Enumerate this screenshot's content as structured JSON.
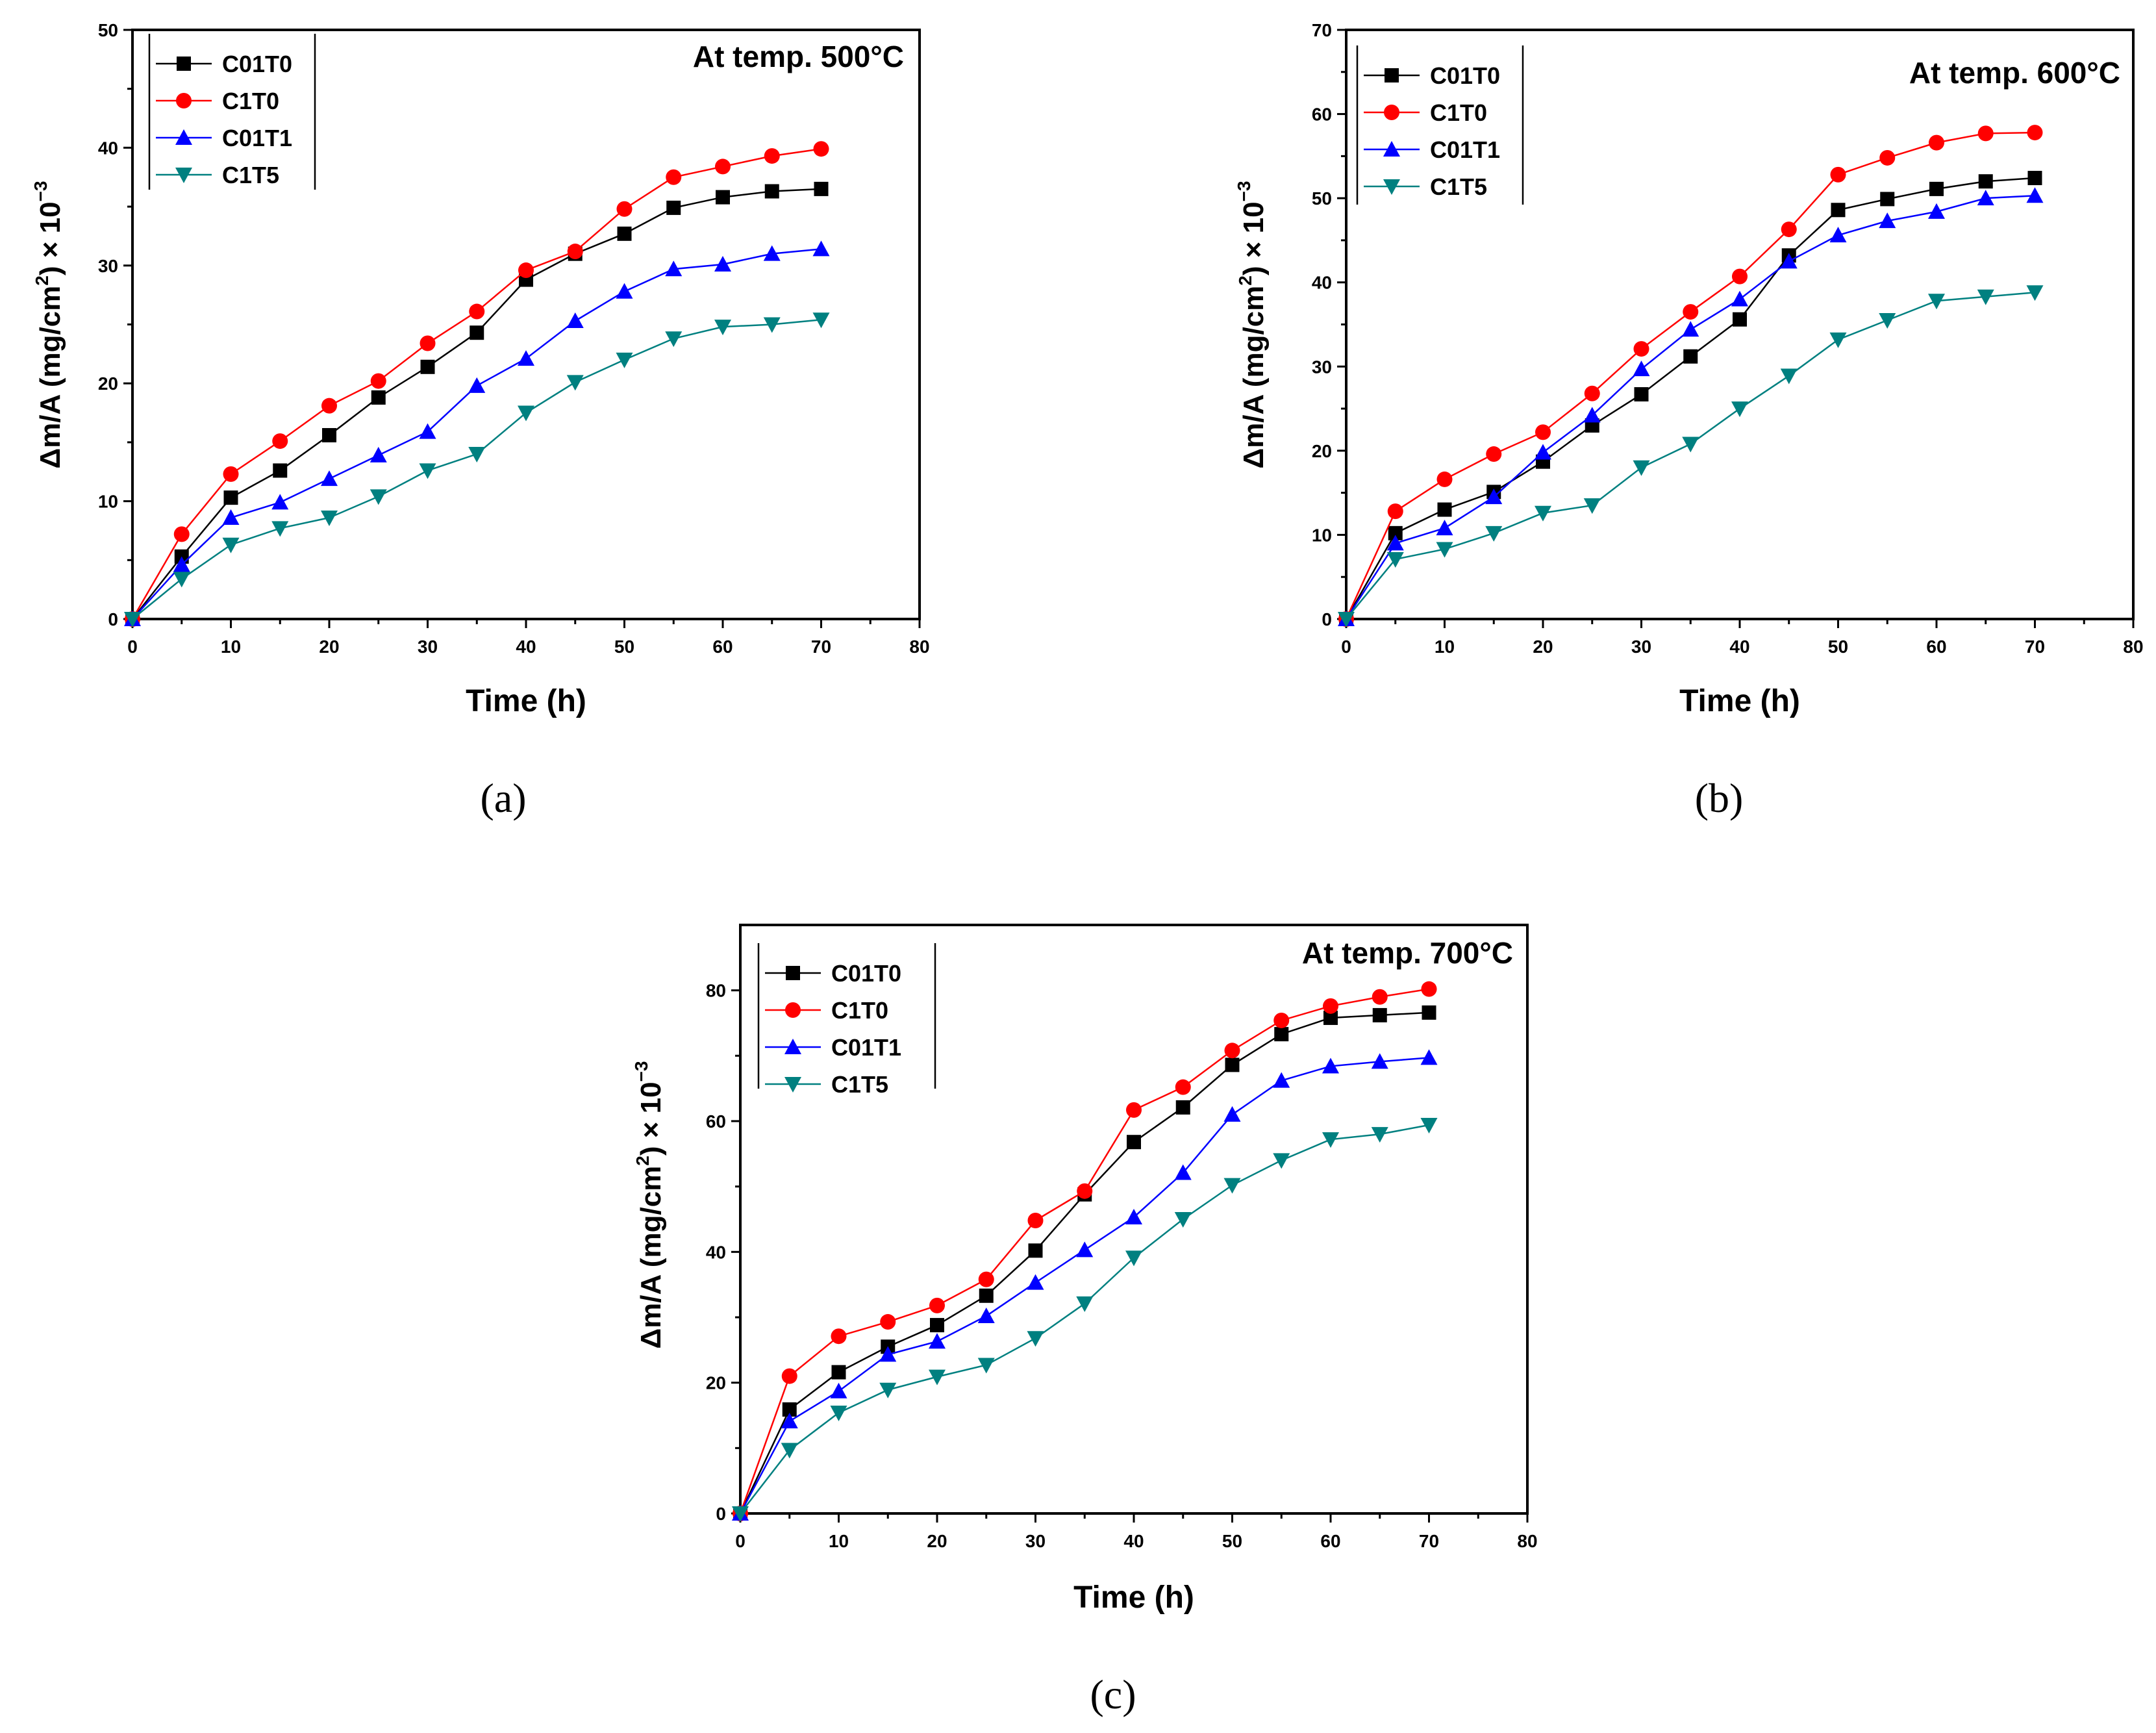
{
  "chart_data": [
    {
      "type": "line",
      "title": "At temp. 500°C",
      "caption": "(a)",
      "xlabel": "Time (h)",
      "ylabel": {
        "main": "Δm/A (mg/cm",
        "sup": "2",
        "tail": ") × 10",
        "exp": "−3"
      },
      "xlim": [
        0,
        80
      ],
      "ylim": [
        0,
        50
      ],
      "xticks": [
        0,
        10,
        20,
        30,
        40,
        50,
        60,
        70,
        80
      ],
      "yticks": [
        0,
        10,
        20,
        30,
        40,
        50
      ],
      "x": [
        0,
        5,
        10,
        15,
        20,
        25,
        30,
        35,
        40,
        45,
        50,
        55,
        60,
        65,
        70
      ],
      "series": [
        {
          "name": "C01T0",
          "color": "#000000",
          "marker": "square",
          "values": [
            0,
            5.3,
            10.3,
            12.6,
            15.6,
            18.8,
            21.4,
            24.3,
            28.8,
            31.0,
            32.7,
            34.9,
            35.8,
            36.3,
            36.5
          ]
        },
        {
          "name": "C1T0",
          "color": "#ff0000",
          "marker": "circle",
          "values": [
            0,
            7.2,
            12.3,
            15.1,
            18.1,
            20.2,
            23.4,
            26.1,
            29.6,
            31.2,
            34.8,
            37.5,
            38.4,
            39.3,
            39.9
          ]
        },
        {
          "name": "C01T1",
          "color": "#0000ff",
          "marker": "triangle-up",
          "values": [
            0,
            4.6,
            8.6,
            9.9,
            11.9,
            13.9,
            15.9,
            19.8,
            22.1,
            25.3,
            27.8,
            29.7,
            30.1,
            31.0,
            31.4
          ]
        },
        {
          "name": "C1T5",
          "color": "#008080",
          "marker": "triangle-down",
          "values": [
            0,
            3.4,
            6.3,
            7.7,
            8.6,
            10.4,
            12.6,
            14.0,
            17.5,
            20.1,
            22.0,
            23.8,
            24.8,
            25.0,
            25.4
          ]
        }
      ]
    },
    {
      "type": "line",
      "title": "At temp. 600°C",
      "caption": "(b)",
      "xlabel": "Time (h)",
      "ylabel": {
        "main": "Δm/A (mg/cm",
        "sup": "2",
        "tail": ") × 10",
        "exp": "−3"
      },
      "xlim": [
        0,
        80
      ],
      "ylim": [
        0,
        70
      ],
      "xticks": [
        0,
        10,
        20,
        30,
        40,
        50,
        60,
        70,
        80
      ],
      "yticks": [
        0,
        10,
        20,
        30,
        40,
        50,
        60,
        70
      ],
      "x": [
        0,
        5,
        10,
        15,
        20,
        25,
        30,
        35,
        40,
        45,
        50,
        55,
        60,
        65,
        70
      ],
      "series": [
        {
          "name": "C01T0",
          "color": "#000000",
          "marker": "square",
          "values": [
            0,
            10.2,
            13.0,
            15.1,
            18.7,
            23.0,
            26.7,
            31.2,
            35.6,
            43.2,
            48.6,
            49.9,
            51.1,
            52.0,
            52.4
          ]
        },
        {
          "name": "C1T0",
          "color": "#ff0000",
          "marker": "circle",
          "values": [
            0,
            12.8,
            16.6,
            19.6,
            22.2,
            26.8,
            32.1,
            36.5,
            40.7,
            46.3,
            52.8,
            54.8,
            56.6,
            57.7,
            57.8
          ]
        },
        {
          "name": "C01T1",
          "color": "#0000ff",
          "marker": "triangle-up",
          "values": [
            0,
            9.0,
            10.8,
            14.5,
            19.8,
            24.2,
            29.7,
            34.4,
            38.0,
            42.5,
            45.6,
            47.3,
            48.4,
            50.0,
            50.3
          ]
        },
        {
          "name": "C1T5",
          "color": "#008080",
          "marker": "triangle-down",
          "values": [
            0,
            7.1,
            8.3,
            10.2,
            12.6,
            13.5,
            18.0,
            20.8,
            25.0,
            28.9,
            33.2,
            35.5,
            37.8,
            38.3,
            38.8
          ]
        }
      ]
    },
    {
      "type": "line",
      "title": "At temp. 700°C",
      "caption": "(c)",
      "xlabel": "Time (h)",
      "ylabel": {
        "main": "Δm/A (mg/cm",
        "sup": "2",
        "tail": ") × 10",
        "exp": "−3"
      },
      "xlim": [
        0,
        80
      ],
      "ylim": [
        0,
        90
      ],
      "xticks": [
        0,
        10,
        20,
        30,
        40,
        50,
        60,
        70,
        80
      ],
      "yticks": [
        0,
        20,
        40,
        60,
        80
      ],
      "x": [
        0,
        5,
        10,
        15,
        20,
        25,
        30,
        35,
        40,
        45,
        50,
        55,
        60,
        65,
        70
      ],
      "series": [
        {
          "name": "C01T0",
          "color": "#000000",
          "marker": "square",
          "values": [
            0,
            15.9,
            21.6,
            25.5,
            28.8,
            33.3,
            40.2,
            48.8,
            56.8,
            62.1,
            68.6,
            73.3,
            75.8,
            76.2,
            76.6
          ]
        },
        {
          "name": "C1T0",
          "color": "#ff0000",
          "marker": "circle",
          "values": [
            0,
            21.0,
            27.1,
            29.3,
            31.8,
            35.8,
            44.8,
            49.3,
            61.7,
            65.2,
            70.8,
            75.4,
            77.6,
            79.0,
            80.2
          ]
        },
        {
          "name": "C01T1",
          "color": "#0000ff",
          "marker": "triangle-up",
          "values": [
            0,
            14.1,
            18.7,
            24.3,
            26.3,
            30.2,
            35.3,
            40.3,
            45.3,
            52.1,
            61.0,
            66.2,
            68.4,
            69.1,
            69.7
          ]
        },
        {
          "name": "C1T5",
          "color": "#008080",
          "marker": "triangle-down",
          "values": [
            0,
            9.7,
            15.4,
            18.9,
            20.9,
            22.7,
            26.8,
            32.1,
            39.1,
            45.0,
            50.2,
            54.0,
            57.2,
            58.0,
            59.4
          ]
        }
      ]
    }
  ]
}
